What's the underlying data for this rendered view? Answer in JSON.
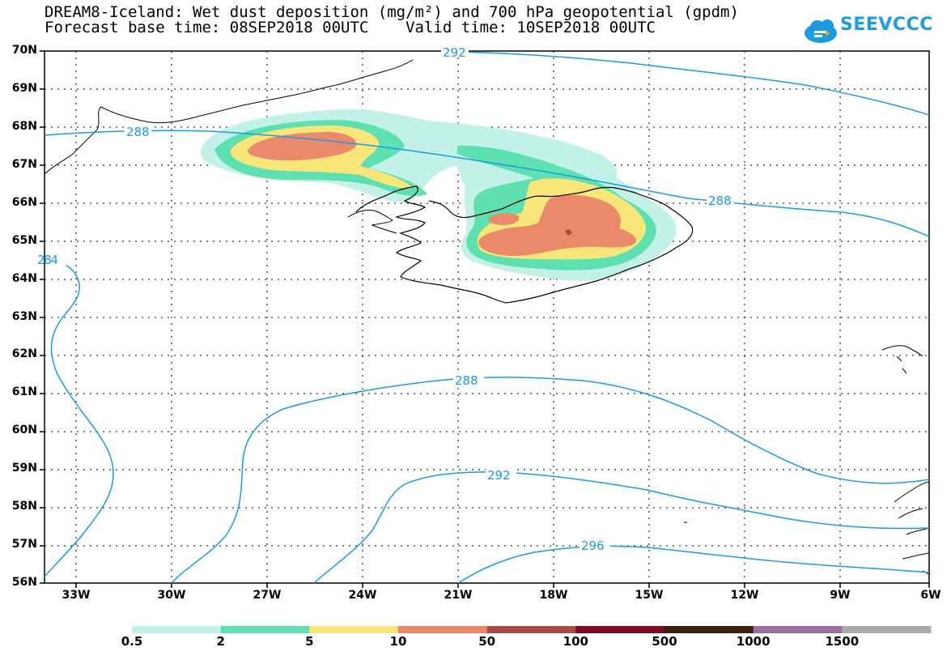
{
  "title_line1": "DREAM8-Iceland: Wet dust deposition (mg/m²) and 700 hPa geopotential (gpdm)",
  "title_line2": "Forecast base time: 08SEP2018 00UTC    Valid time: 10SEP2018 00UTC",
  "logo_text": "SEEVCCC",
  "latitude_labels": [
    "70N",
    "69N",
    "68N",
    "67N",
    "66N",
    "65N",
    "64N",
    "63N",
    "62N",
    "61N",
    "60N",
    "59N",
    "58N",
    "57N",
    "56N"
  ],
  "longitude_labels": [
    "33W",
    "30W",
    "27W",
    "24W",
    "21W",
    "18W",
    "15W",
    "12W",
    "9W",
    "6W"
  ],
  "contour_labels": {
    "top": "292",
    "north_left": "288",
    "north_right": "288",
    "west": "284",
    "middle": "288",
    "south": "292",
    "far_south": "296"
  },
  "legend": {
    "labels": [
      "0.5",
      "2",
      "5",
      "10",
      "50",
      "100",
      "500",
      "1000",
      "1500"
    ],
    "colors": [
      "#c2f1e8",
      "#5ee0b0",
      "#f8e67a",
      "#ea8a6a",
      "#a84c45",
      "#7c0a25",
      "#3d2010",
      "#9a6fa1",
      "#aaaaaa"
    ]
  },
  "colors": {
    "contour": "#1b9be0",
    "coast": "#000000",
    "grid": "#000000"
  }
}
